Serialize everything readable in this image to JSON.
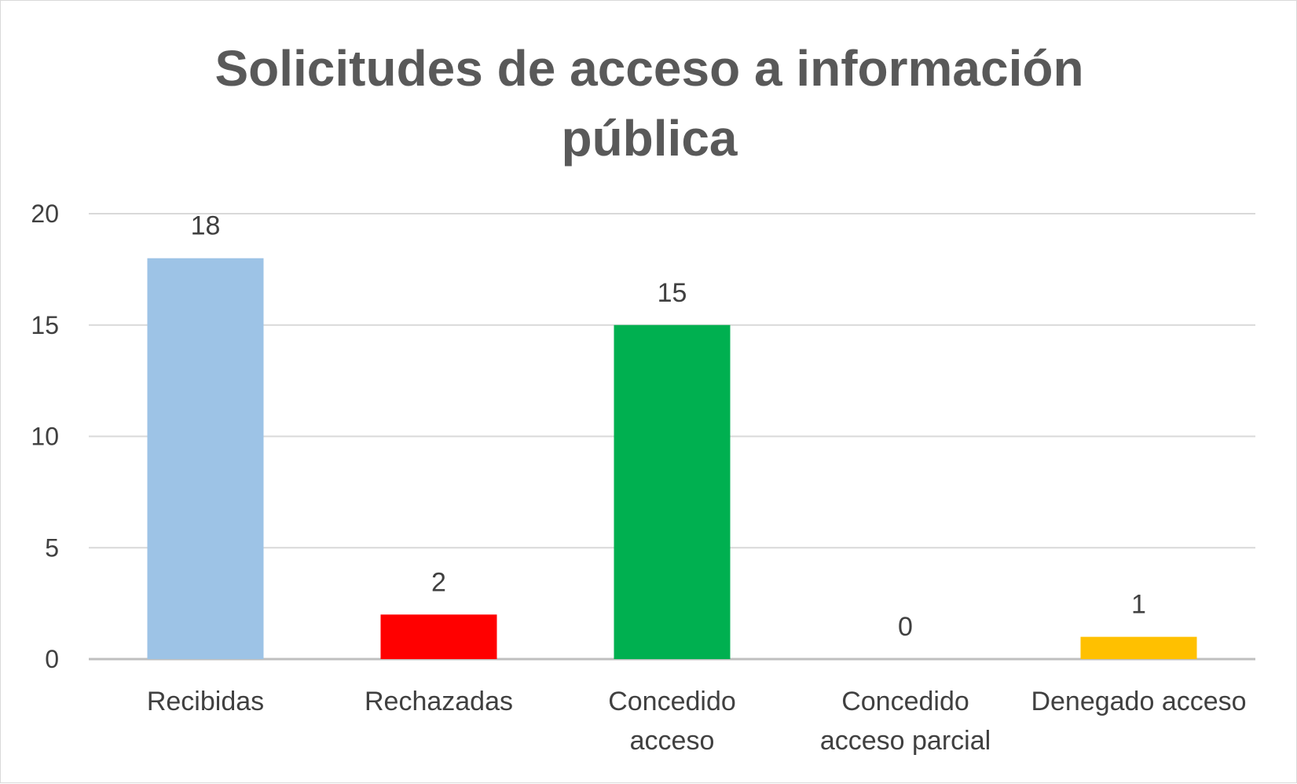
{
  "chart_data": {
    "type": "bar",
    "title_lines": [
      "Solicitudes de acceso a información",
      "pública"
    ],
    "categories": [
      [
        "Recibidas"
      ],
      [
        "Rechazadas"
      ],
      [
        "Concedido",
        "acceso"
      ],
      [
        "Concedido",
        "acceso parcial"
      ],
      [
        "Denegado acceso"
      ]
    ],
    "values": [
      18,
      2,
      15,
      0,
      1
    ],
    "colors": [
      "#9dc3e6",
      "#ff0000",
      "#00b050",
      "#7f7f7f",
      "#ffc000"
    ],
    "ylim": [
      0,
      20
    ],
    "yticks": [
      0,
      5,
      10,
      15,
      20
    ],
    "grid": true,
    "data_labels": true,
    "legend": "none"
  }
}
